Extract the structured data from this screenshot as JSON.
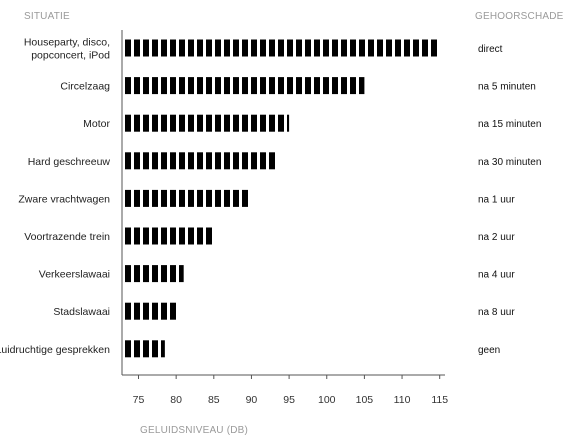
{
  "header": {
    "left": "SITUATIE",
    "right": "GEHOORSCHADE"
  },
  "chart_data": {
    "type": "bar",
    "orientation": "horizontal",
    "xlabel": "GELUIDSNIVEAU (DB)",
    "xlim": [
      72,
      116
    ],
    "xticks": [
      75,
      80,
      85,
      90,
      95,
      100,
      105,
      110,
      115
    ],
    "categories": [
      "Houseparty, disco,\npopconcert, iPod",
      "Circelzaag",
      "Motor",
      "Hard geschreeuw",
      "Zware vrachtwagen",
      "Voortrazende trein",
      "Verkeerslawaai",
      "Stadslawaai",
      "Luidruchtige gesprekken"
    ],
    "values": [
      115,
      105,
      95,
      93.5,
      90,
      85,
      81,
      80,
      78.5
    ],
    "damage": [
      "direct",
      "na 5 minuten",
      "na 15 minuten",
      "na 30 minuten",
      "na 1 uur",
      "na 2 uur",
      "na 4 uur",
      "na 8 uur",
      "geen"
    ],
    "bar_color": "#000000",
    "axis_color": "#555555"
  }
}
